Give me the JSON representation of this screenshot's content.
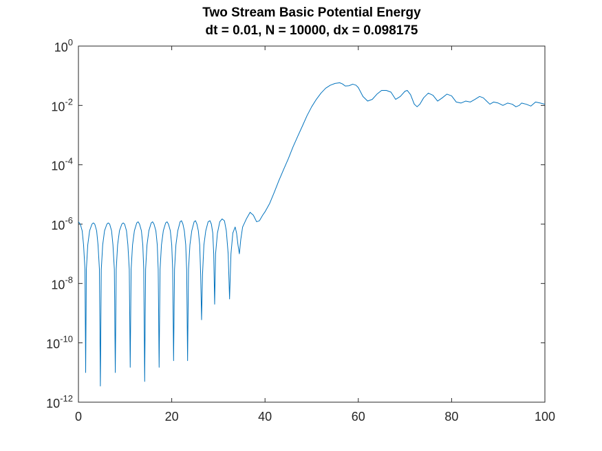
{
  "chart_data": {
    "type": "line",
    "title": "Two Stream Basic Potential Energy",
    "subtitle": "dt = 0.01, N = 10000, dx = 0.098175",
    "xlabel": "",
    "ylabel": "",
    "xlim": [
      0,
      100
    ],
    "ylim": [
      1e-12,
      1
    ],
    "yscale": "log",
    "grid": false,
    "x_ticks": [
      "0",
      "20",
      "40",
      "60",
      "80",
      "100"
    ],
    "y_ticks": [
      {
        "base": "10",
        "exp": "-12",
        "value": 1e-12
      },
      {
        "base": "10",
        "exp": "-10",
        "value": 1e-10
      },
      {
        "base": "10",
        "exp": "-8",
        "value": 1e-08
      },
      {
        "base": "10",
        "exp": "-6",
        "value": 1e-06
      },
      {
        "base": "10",
        "exp": "-4",
        "value": 0.0001
      },
      {
        "base": "10",
        "exp": "-2",
        "value": 0.01
      },
      {
        "base": "10",
        "exp": "0",
        "value": 1
      }
    ],
    "line_color": "#0072bd",
    "series": [
      {
        "points": [
          [
            0,
            1.2e-06
          ],
          [
            0.4,
            1e-06
          ],
          [
            0.8,
            6e-07
          ],
          [
            1.1,
            2e-07
          ],
          [
            1.4,
            3e-08
          ],
          [
            1.55,
            1e-11
          ],
          [
            1.7,
            3e-08
          ],
          [
            2.0,
            2e-07
          ],
          [
            2.4,
            6e-07
          ],
          [
            2.9,
            1e-06
          ],
          [
            3.2,
            1.1e-06
          ],
          [
            3.5,
            1e-06
          ],
          [
            3.9,
            6e-07
          ],
          [
            4.2,
            2e-07
          ],
          [
            4.5,
            3e-08
          ],
          [
            4.7,
            3.5e-12
          ],
          [
            4.9,
            3e-08
          ],
          [
            5.2,
            2e-07
          ],
          [
            5.6,
            6e-07
          ],
          [
            6.1,
            1e-06
          ],
          [
            6.4,
            1.1e-06
          ],
          [
            6.7,
            1e-06
          ],
          [
            7.1,
            6e-07
          ],
          [
            7.4,
            2e-07
          ],
          [
            7.7,
            3e-08
          ],
          [
            7.9,
            1e-11
          ],
          [
            8.1,
            3e-08
          ],
          [
            8.4,
            2e-07
          ],
          [
            8.8,
            6e-07
          ],
          [
            9.3,
            1e-06
          ],
          [
            9.6,
            1.1e-06
          ],
          [
            9.9,
            1e-06
          ],
          [
            10.3,
            6e-07
          ],
          [
            10.6,
            2e-07
          ],
          [
            10.9,
            3e-08
          ],
          [
            11.1,
            1.5e-11
          ],
          [
            11.3,
            3e-08
          ],
          [
            11.6,
            2e-07
          ],
          [
            12.0,
            6e-07
          ],
          [
            12.5,
            1.1e-06
          ],
          [
            12.8,
            1.2e-06
          ],
          [
            13.1,
            1e-06
          ],
          [
            13.5,
            6e-07
          ],
          [
            13.8,
            2e-07
          ],
          [
            14.0,
            3e-08
          ],
          [
            14.2,
            5e-12
          ],
          [
            14.4,
            3e-08
          ],
          [
            14.7,
            2e-07
          ],
          [
            15.1,
            6e-07
          ],
          [
            15.6,
            1.1e-06
          ],
          [
            15.9,
            1.2e-06
          ],
          [
            16.2,
            1e-06
          ],
          [
            16.6,
            6e-07
          ],
          [
            16.9,
            2e-07
          ],
          [
            17.1,
            3e-08
          ],
          [
            17.3,
            1.5e-11
          ],
          [
            17.5,
            3e-08
          ],
          [
            17.8,
            2e-07
          ],
          [
            18.2,
            6e-07
          ],
          [
            18.7,
            1.1e-06
          ],
          [
            19.0,
            1.2e-06
          ],
          [
            19.3,
            1e-06
          ],
          [
            19.7,
            6e-07
          ],
          [
            20.0,
            2e-07
          ],
          [
            20.2,
            3e-08
          ],
          [
            20.4,
            2.5e-11
          ],
          [
            20.6,
            3e-08
          ],
          [
            20.9,
            2e-07
          ],
          [
            21.3,
            6e-07
          ],
          [
            21.8,
            1.2e-06
          ],
          [
            22.1,
            1.3e-06
          ],
          [
            22.4,
            1e-06
          ],
          [
            22.7,
            6e-07
          ],
          [
            23.0,
            2e-07
          ],
          [
            23.2,
            3e-08
          ],
          [
            23.4,
            2.5e-11
          ],
          [
            23.6,
            3e-08
          ],
          [
            23.9,
            2e-07
          ],
          [
            24.3,
            6e-07
          ],
          [
            24.8,
            1.2e-06
          ],
          [
            25.1,
            1.3e-06
          ],
          [
            25.4,
            1e-06
          ],
          [
            25.7,
            6e-07
          ],
          [
            26.0,
            2e-07
          ],
          [
            26.2,
            2e-08
          ],
          [
            26.4,
            6e-10
          ],
          [
            26.6,
            2e-08
          ],
          [
            26.9,
            2e-07
          ],
          [
            27.3,
            6e-07
          ],
          [
            27.8,
            1.2e-06
          ],
          [
            28.2,
            1.3e-06
          ],
          [
            28.5,
            1e-06
          ],
          [
            28.8,
            5e-07
          ],
          [
            29.0,
            1e-07
          ],
          [
            29.2,
            2e-09
          ],
          [
            29.4,
            1e-07
          ],
          [
            29.8,
            5e-07
          ],
          [
            30.3,
            1.2e-06
          ],
          [
            30.8,
            1.5e-06
          ],
          [
            31.3,
            1.3e-06
          ],
          [
            31.7,
            6e-07
          ],
          [
            32.1,
            1e-07
          ],
          [
            32.4,
            3e-09
          ],
          [
            32.7,
            1e-07
          ],
          [
            33.1,
            5e-07
          ],
          [
            33.6,
            8e-07
          ],
          [
            33.9,
            5e-07
          ],
          [
            34.2,
            2e-07
          ],
          [
            34.5,
            1e-07
          ],
          [
            34.8,
            3e-07
          ],
          [
            35.2,
            8e-07
          ],
          [
            36.0,
            1.5e-06
          ],
          [
            36.8,
            2.5e-06
          ],
          [
            37.5,
            2e-06
          ],
          [
            38.2,
            1.2e-06
          ],
          [
            38.8,
            1.3e-06
          ],
          [
            39.5,
            2e-06
          ],
          [
            40.0,
            2.6e-06
          ],
          [
            41.0,
            5e-06
          ],
          [
            42.0,
            1.2e-05
          ],
          [
            43.0,
            3e-05
          ],
          [
            44.0,
            7e-05
          ],
          [
            45.0,
            0.00016
          ],
          [
            46.0,
            0.0004
          ],
          [
            47.0,
            0.0009
          ],
          [
            48.0,
            0.002
          ],
          [
            49.0,
            0.0045
          ],
          [
            50.0,
            0.009
          ],
          [
            51.0,
            0.016
          ],
          [
            52.0,
            0.026
          ],
          [
            53.0,
            0.038
          ],
          [
            54.0,
            0.048
          ],
          [
            55.0,
            0.055
          ],
          [
            56.0,
            0.058
          ],
          [
            56.6,
            0.053
          ],
          [
            57.2,
            0.045
          ],
          [
            58.0,
            0.046
          ],
          [
            58.8,
            0.052
          ],
          [
            59.5,
            0.048
          ],
          [
            60.0,
            0.04
          ],
          [
            61.0,
            0.02
          ],
          [
            62.0,
            0.014
          ],
          [
            63.0,
            0.016
          ],
          [
            64.0,
            0.024
          ],
          [
            65.0,
            0.032
          ],
          [
            66.0,
            0.032
          ],
          [
            67.0,
            0.028
          ],
          [
            68.0,
            0.016
          ],
          [
            69.0,
            0.02
          ],
          [
            70.0,
            0.03
          ],
          [
            70.5,
            0.032
          ],
          [
            71.2,
            0.023
          ],
          [
            72.0,
            0.011
          ],
          [
            72.6,
            0.009
          ],
          [
            73.2,
            0.011
          ],
          [
            74.0,
            0.018
          ],
          [
            75.0,
            0.026
          ],
          [
            76.0,
            0.022
          ],
          [
            77.0,
            0.014
          ],
          [
            78.0,
            0.018
          ],
          [
            79.0,
            0.024
          ],
          [
            80.0,
            0.021
          ],
          [
            81.0,
            0.013
          ],
          [
            82.0,
            0.012
          ],
          [
            83.0,
            0.014
          ],
          [
            84.0,
            0.013
          ],
          [
            85.0,
            0.016
          ],
          [
            86.0,
            0.02
          ],
          [
            86.8,
            0.018
          ],
          [
            87.5,
            0.014
          ],
          [
            88.2,
            0.011
          ],
          [
            89.0,
            0.013
          ],
          [
            90.0,
            0.012
          ],
          [
            91.0,
            0.01
          ],
          [
            92.0,
            0.012
          ],
          [
            93.0,
            0.011
          ],
          [
            93.8,
            0.009
          ],
          [
            94.5,
            0.01
          ],
          [
            95.0,
            0.012
          ],
          [
            96.0,
            0.011
          ],
          [
            97.0,
            0.0095
          ],
          [
            98.0,
            0.013
          ],
          [
            99.0,
            0.012
          ],
          [
            100.0,
            0.011
          ]
        ]
      }
    ]
  }
}
